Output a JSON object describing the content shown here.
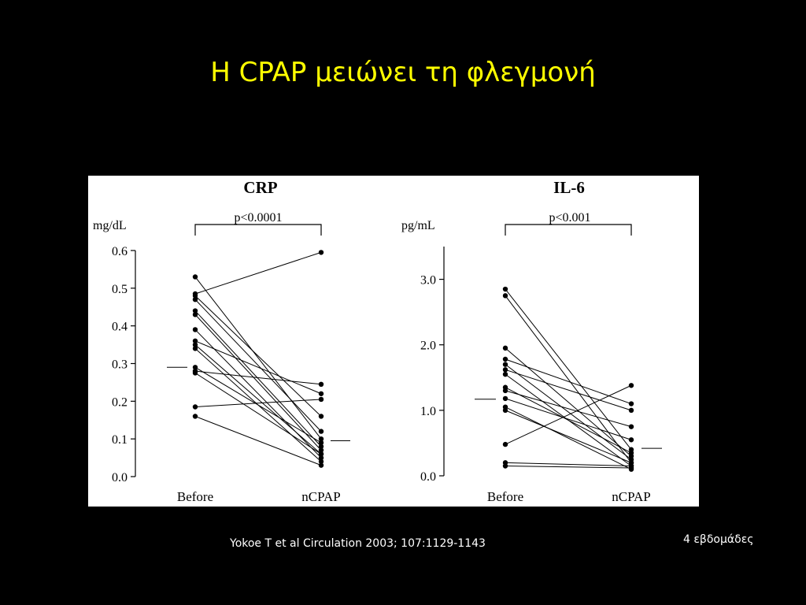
{
  "slide": {
    "title": "Η CPAP μειώνει τη φλεγμονή",
    "citation": "Yokoe T et al Circulation 2003; 107:1129-1143",
    "note": "4 εβδομάδες"
  },
  "colors": {
    "background": "#000000",
    "title": "#ffff00",
    "text": "#ffffff",
    "panel": "#ffffff",
    "ink": "#000000"
  },
  "chart_data": [
    {
      "type": "line",
      "title": "CRP",
      "ylabel": "mg/dL",
      "significance": "p<0.0001",
      "categories": [
        "Before",
        "nCPAP"
      ],
      "ylim": [
        0,
        0.6
      ],
      "yticks": [
        "0.0",
        "0.1",
        "0.2",
        "0.3",
        "0.4",
        "0.5",
        "0.6"
      ],
      "ytick_values": [
        0,
        0.1,
        0.2,
        0.3,
        0.4,
        0.5,
        0.6
      ],
      "mean_before": 0.29,
      "mean_after": 0.095,
      "pairs": [
        [
          0.53,
          0.1
        ],
        [
          0.485,
          0.595
        ],
        [
          0.48,
          0.16
        ],
        [
          0.47,
          0.12
        ],
        [
          0.44,
          0.08
        ],
        [
          0.43,
          0.07
        ],
        [
          0.39,
          0.05
        ],
        [
          0.36,
          0.22
        ],
        [
          0.35,
          0.06
        ],
        [
          0.34,
          0.04
        ],
        [
          0.29,
          0.09
        ],
        [
          0.28,
          0.245
        ],
        [
          0.275,
          0.06
        ],
        [
          0.185,
          0.205
        ],
        [
          0.16,
          0.03
        ]
      ]
    },
    {
      "type": "line",
      "title": "IL-6",
      "ylabel": "pg/mL",
      "significance": "p<0.001",
      "categories": [
        "Before",
        "nCPAP"
      ],
      "ylim": [
        0,
        3.5
      ],
      "yticks": [
        "0.0",
        "1.0",
        "2.0",
        "3.0"
      ],
      "ytick_values": [
        0,
        1,
        2,
        3
      ],
      "mean_before": 1.17,
      "mean_after": 0.42,
      "pairs": [
        [
          2.85,
          0.4
        ],
        [
          2.75,
          0.2
        ],
        [
          1.95,
          0.3
        ],
        [
          1.78,
          1.1
        ],
        [
          1.7,
          0.25
        ],
        [
          1.62,
          1.0
        ],
        [
          1.55,
          0.15
        ],
        [
          1.35,
          0.35
        ],
        [
          1.3,
          0.75
        ],
        [
          1.18,
          0.55
        ],
        [
          1.05,
          0.1
        ],
        [
          1.0,
          0.2
        ],
        [
          0.48,
          1.38
        ],
        [
          0.2,
          0.15
        ],
        [
          0.15,
          0.12
        ]
      ]
    }
  ]
}
